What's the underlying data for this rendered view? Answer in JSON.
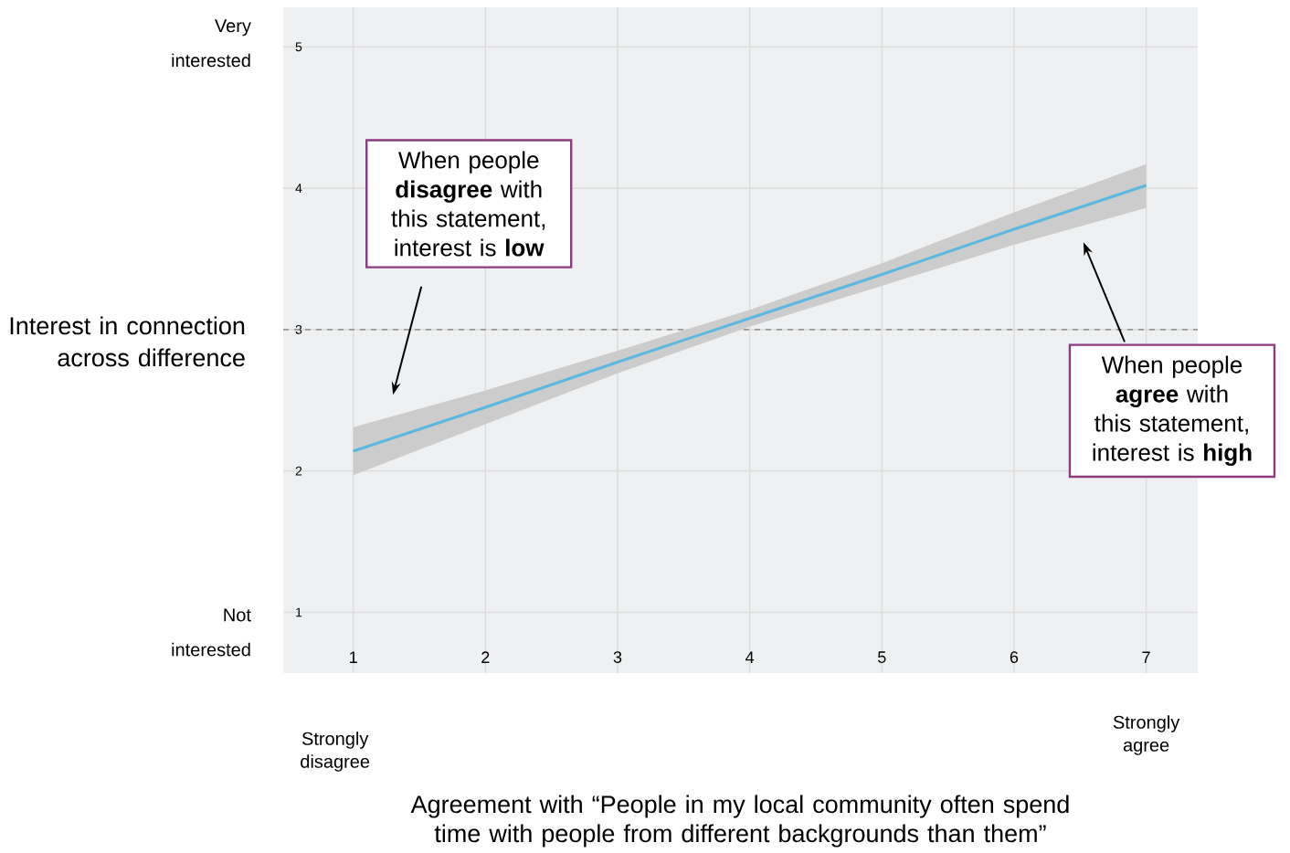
{
  "chart_data": {
    "type": "line",
    "xlabel": "Agreement with “People in my local community often spend time with people from different backgrounds than them”",
    "ylabel": "Interest in connection across difference",
    "x": [
      1,
      2,
      3,
      4,
      5,
      6,
      7
    ],
    "series": [
      {
        "color": "#5bb8e0",
        "values": [
          2.14,
          2.45,
          2.77,
          3.08,
          3.39,
          3.71,
          4.02
        ],
        "lower": [
          1.97,
          2.33,
          2.69,
          3.02,
          3.31,
          3.6,
          3.86
        ],
        "upper": [
          2.31,
          2.57,
          2.85,
          3.14,
          3.47,
          3.83,
          4.17
        ]
      }
    ],
    "xlim": [
      0.47,
      7.39
    ],
    "ylim": [
      0.57,
      5.28
    ],
    "xticks": [
      1,
      2,
      3,
      4,
      5,
      6,
      7
    ],
    "yticks": [
      1,
      2,
      3,
      4,
      5
    ],
    "grid": true,
    "ref_lines": [
      {
        "axis": "y",
        "value": 3,
        "line_style": "dashed",
        "color": "#999999"
      }
    ],
    "annotations": [
      "Very interested",
      "Not interested",
      "Strongly disagree",
      "Strongly agree",
      "When people **disagree** with this statement, interest is **low**",
      "When people **agree** with this statement, interest is **high**"
    ]
  }
}
